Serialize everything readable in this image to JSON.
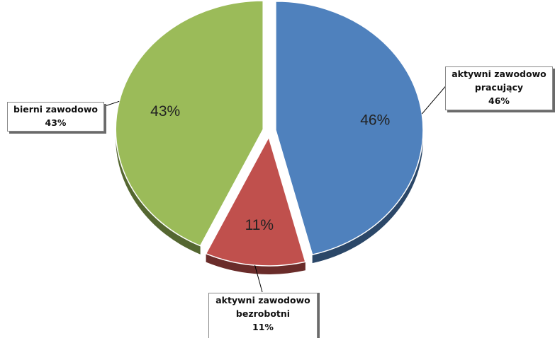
{
  "chart_data": {
    "type": "pie",
    "slices": [
      {
        "label": "aktywni zawodowo pracujący",
        "label_lines": [
          "aktywni zawodowo",
          "pracujący"
        ],
        "value": 46,
        "value_label": "46%",
        "color": "#4f81bd"
      },
      {
        "label": "aktywni zawodowo bezrobotni",
        "label_lines": [
          "aktywni zawodowo",
          "bezrobotni"
        ],
        "value": 11,
        "value_label": "11%",
        "color": "#c0504d"
      },
      {
        "label": "bierni zawodowo",
        "label_lines": [
          "bierni zawodowo"
        ],
        "value": 43,
        "value_label": "43%",
        "color": "#9bbb59"
      }
    ],
    "style": "3d-exploded",
    "legend": "none"
  }
}
